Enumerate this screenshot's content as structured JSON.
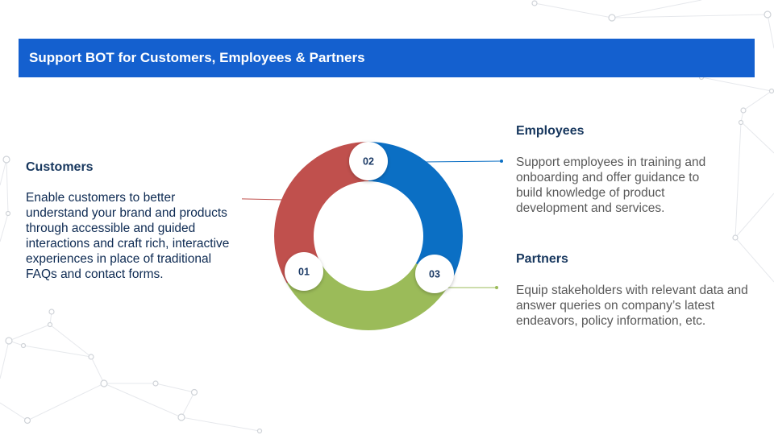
{
  "title": "Support BOT for Customers, Employees & Partners",
  "colors": {
    "title_bar": "#1460cf",
    "customers": "#c0504d",
    "employees": "#0b6fc4",
    "partners": "#9bbb59",
    "heading": "#17375e"
  },
  "sections": {
    "customers": {
      "heading": "Customers",
      "number": "01",
      "body": "Enable customers to better understand your brand and products through accessible and guided interactions and craft rich, interactive experiences in place of traditional FAQs and contact forms."
    },
    "employees": {
      "heading": "Employees",
      "number": "02",
      "body": "Support employees in training and onboarding and offer guidance to build knowledge of product development and services."
    },
    "partners": {
      "heading": "Partners",
      "number": "03",
      "body": "Equip stakeholders with relevant data and answer queries on company’s latest endeavors, policy information, etc."
    }
  }
}
